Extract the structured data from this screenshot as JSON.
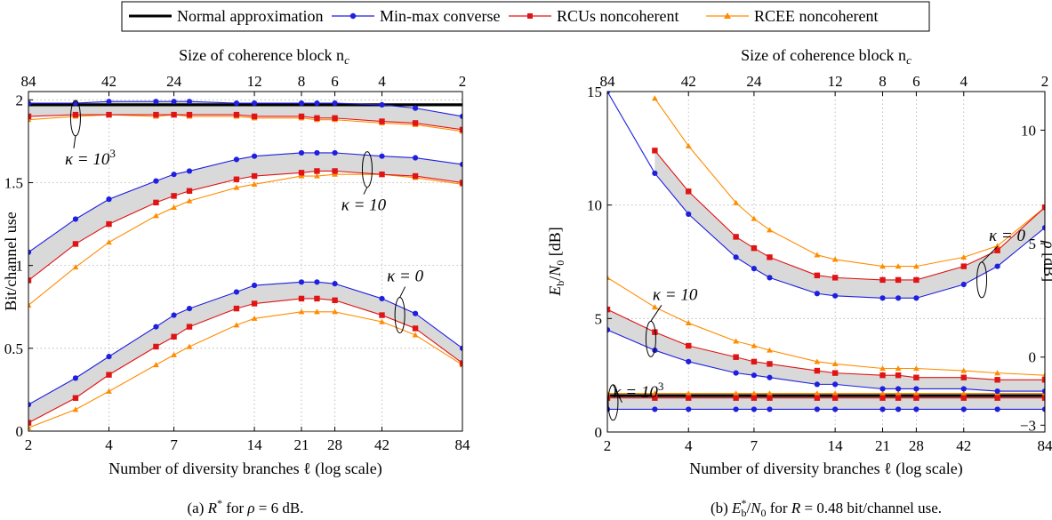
{
  "legend": {
    "entries": [
      {
        "label": "Normal approximation",
        "color": "#000000",
        "marker": "none"
      },
      {
        "label": "Min-max converse",
        "color": "#1f1fe0",
        "marker": "circle"
      },
      {
        "label": "RCUs noncoherent",
        "color": "#e01414",
        "marker": "square"
      },
      {
        "label": "RCEE noncoherent",
        "color": "#ff8c00",
        "marker": "triangle"
      }
    ]
  },
  "colors": {
    "normal": "#000000",
    "minmax": "#1f1fe0",
    "rcus": "#e01414",
    "rcee": "#ff8c00",
    "band": "#d9d9d9",
    "grid": "#b0b0b0"
  },
  "chart_data": [
    {
      "type": "line",
      "caption": "(a)  R* for ρ = 6 dB.",
      "caption_parts": {
        "prefix": "(a)  ",
        "sym": "R",
        "sup": "*",
        "mid": "  for  ",
        "var": "ρ",
        "rest": " = 6 dB."
      },
      "xlabel": "Number of diversity branches ℓ (log scale)",
      "ylabel": "Bit/channel use",
      "top_label": "Size of coherence block n",
      "top_label_sub": "c",
      "x_scale": "log",
      "xlim": [
        2,
        84
      ],
      "ylim": [
        0,
        2.05
      ],
      "grid": true,
      "x_ticks": [
        2,
        4,
        7,
        14,
        21,
        28,
        42,
        84
      ],
      "x_tick_labels": [
        "2",
        "4",
        "7",
        "14",
        "21",
        "28",
        "42",
        "84"
      ],
      "top_ticks_at_l": [
        2,
        4,
        7,
        14,
        21,
        28,
        42,
        84
      ],
      "top_tick_labels": [
        "84",
        "42",
        "24",
        "12",
        "8",
        "6",
        "4",
        "2"
      ],
      "y_ticks": [
        0,
        0.5,
        1,
        1.5,
        2
      ],
      "y_tick_labels": [
        "0",
        "0.5",
        "1",
        "1.5",
        "2"
      ],
      "series": [
        {
          "group": "kappa=10^3",
          "name": "Normal approximation",
          "x": [
            2,
            84
          ],
          "values": [
            1.97,
            1.97
          ]
        },
        {
          "group": "kappa=10^3",
          "name": "Min-max converse",
          "x": [
            2,
            3,
            4,
            6,
            7,
            8,
            12,
            14,
            21,
            24,
            28,
            42,
            56,
            84
          ],
          "values": [
            1.98,
            1.98,
            1.99,
            1.99,
            1.99,
            1.99,
            1.98,
            1.98,
            1.98,
            1.98,
            1.98,
            1.97,
            1.95,
            1.9
          ]
        },
        {
          "group": "kappa=10^3",
          "name": "RCUs noncoherent",
          "x": [
            2,
            3,
            4,
            6,
            7,
            8,
            12,
            14,
            21,
            24,
            28,
            42,
            56,
            84
          ],
          "values": [
            1.9,
            1.91,
            1.91,
            1.91,
            1.91,
            1.91,
            1.91,
            1.9,
            1.9,
            1.89,
            1.89,
            1.87,
            1.86,
            1.82
          ]
        },
        {
          "group": "kappa=10^3",
          "name": "RCEE noncoherent",
          "x": [
            2,
            3,
            4,
            6,
            7,
            8,
            12,
            14,
            21,
            24,
            28,
            42,
            56,
            84
          ],
          "values": [
            1.88,
            1.9,
            1.91,
            1.9,
            1.91,
            1.9,
            1.9,
            1.89,
            1.89,
            1.88,
            1.88,
            1.86,
            1.85,
            1.81
          ]
        },
        {
          "group": "kappa=10",
          "name": "Min-max converse",
          "x": [
            2,
            3,
            4,
            6,
            7,
            8,
            12,
            14,
            21,
            24,
            28,
            42,
            56,
            84
          ],
          "values": [
            1.08,
            1.28,
            1.4,
            1.51,
            1.55,
            1.57,
            1.64,
            1.66,
            1.68,
            1.68,
            1.68,
            1.66,
            1.65,
            1.61
          ]
        },
        {
          "group": "kappa=10",
          "name": "RCUs noncoherent",
          "x": [
            2,
            3,
            4,
            6,
            7,
            8,
            12,
            14,
            21,
            24,
            28,
            42,
            56,
            84
          ],
          "values": [
            0.91,
            1.13,
            1.25,
            1.38,
            1.42,
            1.45,
            1.52,
            1.54,
            1.56,
            1.57,
            1.57,
            1.55,
            1.54,
            1.5
          ]
        },
        {
          "group": "kappa=10",
          "name": "RCEE noncoherent",
          "x": [
            2,
            3,
            4,
            6,
            7,
            8,
            12,
            14,
            21,
            24,
            28,
            42,
            56,
            84
          ],
          "values": [
            0.76,
            0.99,
            1.14,
            1.3,
            1.35,
            1.39,
            1.47,
            1.49,
            1.54,
            1.54,
            1.55,
            1.55,
            1.53,
            1.49
          ]
        },
        {
          "group": "kappa=0",
          "name": "Min-max converse",
          "x": [
            2,
            3,
            4,
            6,
            7,
            8,
            12,
            14,
            21,
            24,
            28,
            42,
            56,
            84
          ],
          "values": [
            0.16,
            0.32,
            0.45,
            0.63,
            0.7,
            0.74,
            0.84,
            0.88,
            0.9,
            0.9,
            0.89,
            0.8,
            0.71,
            0.5
          ]
        },
        {
          "group": "kappa=0",
          "name": "RCUs noncoherent",
          "x": [
            2,
            3,
            4,
            6,
            7,
            8,
            12,
            14,
            21,
            24,
            28,
            42,
            56,
            84
          ],
          "values": [
            0.05,
            0.2,
            0.34,
            0.51,
            0.57,
            0.63,
            0.74,
            0.77,
            0.8,
            0.8,
            0.79,
            0.7,
            0.62,
            0.41
          ]
        },
        {
          "group": "kappa=0",
          "name": "RCEE noncoherent",
          "x": [
            2,
            3,
            4,
            6,
            7,
            8,
            12,
            14,
            21,
            24,
            28,
            42,
            56,
            84
          ],
          "values": [
            0.02,
            0.13,
            0.24,
            0.4,
            0.46,
            0.51,
            0.64,
            0.68,
            0.72,
            0.72,
            0.72,
            0.66,
            0.58,
            0.4
          ]
        }
      ],
      "annotations": [
        {
          "text": "κ = 10",
          "sup": "3",
          "anchor_l": 3,
          "anchor_y": 1.89
        },
        {
          "text": "κ = 10",
          "sup": "",
          "anchor_l": 37,
          "anchor_y": 1.58
        },
        {
          "text": "κ = 0",
          "sup": "",
          "anchor_l": 49,
          "anchor_y": 0.7
        }
      ]
    },
    {
      "type": "line",
      "caption": "(b)  E*_b/N_0 for R = 0.48 bit/channel use.",
      "caption_parts": {
        "prefix": "(b)  ",
        "rest": " = 0.48 bit/channel use."
      },
      "xlabel": "Number of diversity branches ℓ (log scale)",
      "ylabel": "E_b/N_0 [dB]",
      "y2label": "ρ [dB]",
      "top_label": "Size of coherence block n",
      "top_label_sub": "c",
      "x_scale": "log",
      "xlim": [
        2,
        84
      ],
      "ylim": [
        0,
        15
      ],
      "y2lim": [
        -3.3,
        11.7
      ],
      "grid": true,
      "x_ticks": [
        2,
        4,
        7,
        14,
        21,
        28,
        42,
        84
      ],
      "x_tick_labels": [
        "2",
        "4",
        "7",
        "14",
        "21",
        "28",
        "42",
        "84"
      ],
      "top_ticks_at_l": [
        2,
        4,
        7,
        14,
        21,
        28,
        42,
        84
      ],
      "top_tick_labels": [
        "84",
        "42",
        "24",
        "12",
        "8",
        "6",
        "4",
        "2"
      ],
      "y_ticks": [
        0,
        5,
        10,
        15
      ],
      "y_tick_labels": [
        "0",
        "5",
        "10",
        "15"
      ],
      "y2_ticks": [
        -3,
        0,
        5,
        10
      ],
      "y2_tick_labels": [
        "−3",
        "0",
        "5",
        "10"
      ],
      "series": [
        {
          "group": "kappa=0",
          "name": "Min-max converse",
          "x": [
            2,
            3,
            4,
            6,
            7,
            8,
            12,
            14,
            21,
            24,
            28,
            42,
            56,
            84
          ],
          "values": [
            15.0,
            11.4,
            9.6,
            7.7,
            7.2,
            6.8,
            6.1,
            6.0,
            5.9,
            5.9,
            5.9,
            6.5,
            7.3,
            9.0
          ]
        },
        {
          "group": "kappa=0",
          "name": "RCUs noncoherent",
          "x": [
            3,
            4,
            6,
            7,
            8,
            12,
            14,
            21,
            24,
            28,
            42,
            56,
            84
          ],
          "values": [
            12.4,
            10.6,
            8.6,
            8.1,
            7.7,
            6.9,
            6.8,
            6.7,
            6.7,
            6.7,
            7.3,
            8.0,
            9.9
          ]
        },
        {
          "group": "kappa=0",
          "name": "RCEE noncoherent",
          "x": [
            3,
            4,
            6,
            7,
            8,
            12,
            14,
            21,
            24,
            28,
            42,
            56,
            84
          ],
          "values": [
            14.7,
            12.6,
            10.1,
            9.4,
            8.9,
            7.8,
            7.6,
            7.3,
            7.3,
            7.3,
            7.7,
            8.2,
            9.9
          ]
        },
        {
          "group": "kappa=10",
          "name": "Min-max converse",
          "x": [
            2,
            3,
            4,
            6,
            7,
            8,
            12,
            14,
            21,
            24,
            28,
            42,
            56,
            84
          ],
          "values": [
            4.5,
            3.6,
            3.1,
            2.6,
            2.5,
            2.4,
            2.1,
            2.1,
            1.9,
            1.9,
            1.9,
            1.9,
            1.8,
            1.8
          ]
        },
        {
          "group": "kappa=10",
          "name": "RCUs noncoherent",
          "x": [
            2,
            3,
            4,
            6,
            7,
            8,
            12,
            14,
            21,
            24,
            28,
            42,
            56,
            84
          ],
          "values": [
            5.4,
            4.4,
            3.8,
            3.3,
            3.1,
            3.0,
            2.7,
            2.6,
            2.5,
            2.5,
            2.4,
            2.4,
            2.3,
            2.3
          ]
        },
        {
          "group": "kappa=10",
          "name": "RCEE noncoherent",
          "x": [
            2,
            3,
            4,
            6,
            7,
            8,
            12,
            14,
            21,
            24,
            28,
            42,
            56,
            84
          ],
          "values": [
            6.8,
            5.5,
            4.8,
            4.0,
            3.8,
            3.6,
            3.1,
            3.0,
            2.8,
            2.8,
            2.8,
            2.7,
            2.6,
            2.5
          ]
        },
        {
          "group": "kappa=10^3",
          "name": "Normal approximation",
          "x": [
            2,
            84
          ],
          "values": [
            1.6,
            1.6
          ]
        },
        {
          "group": "kappa=10^3",
          "name": "Min-max converse",
          "x": [
            2,
            3,
            4,
            6,
            7,
            8,
            12,
            14,
            21,
            24,
            28,
            42,
            56,
            84
          ],
          "values": [
            1.0,
            1.0,
            1.0,
            1.0,
            1.0,
            1.0,
            1.0,
            1.0,
            1.0,
            1.0,
            1.0,
            1.0,
            1.0,
            1.0
          ]
        },
        {
          "group": "kappa=10^3",
          "name": "RCUs noncoherent",
          "x": [
            2,
            3,
            4,
            6,
            7,
            8,
            12,
            14,
            21,
            24,
            28,
            42,
            56,
            84
          ],
          "values": [
            1.5,
            1.5,
            1.5,
            1.5,
            1.5,
            1.5,
            1.5,
            1.5,
            1.5,
            1.5,
            1.5,
            1.5,
            1.5,
            1.5
          ]
        },
        {
          "group": "kappa=10^3",
          "name": "RCEE noncoherent",
          "x": [
            2,
            3,
            4,
            6,
            7,
            8,
            12,
            14,
            21,
            24,
            28,
            42,
            56,
            84
          ],
          "values": [
            1.7,
            1.7,
            1.7,
            1.7,
            1.7,
            1.7,
            1.7,
            1.7,
            1.7,
            1.7,
            1.7,
            1.7,
            1.7,
            1.7
          ]
        }
      ],
      "annotations": [
        {
          "text": "κ = 0",
          "sup": "",
          "anchor_l": 49,
          "anchor_y": 6.7
        },
        {
          "text": "κ = 10",
          "sup": "",
          "anchor_l": 2.9,
          "anchor_y": 4.1
        },
        {
          "text": "κ = 10",
          "sup": "3",
          "anchor_l": 2.1,
          "anchor_y": 1.3
        }
      ]
    }
  ]
}
